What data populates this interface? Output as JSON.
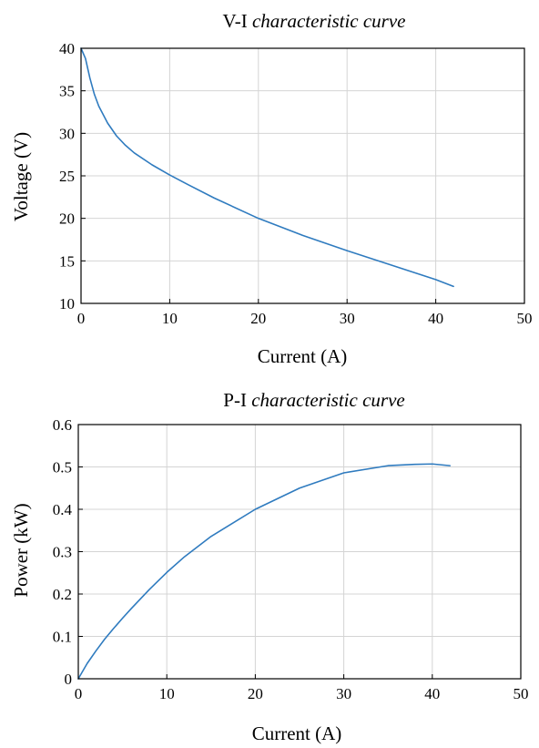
{
  "colors": {
    "series": "#2f7bbf"
  },
  "chart_data": [
    {
      "type": "line",
      "title_main": "V-I",
      "title_italic": "characteristic curve",
      "xlabel": "Current (A)",
      "ylabel": "Voltage (V)",
      "xlim": [
        0,
        50
      ],
      "ylim": [
        10,
        40
      ],
      "grid": true,
      "xticks": [
        "0",
        "10",
        "20",
        "30",
        "40",
        "50"
      ],
      "yticks": [
        "10",
        "15",
        "20",
        "25",
        "30",
        "35",
        "40"
      ],
      "series": [
        {
          "x": [
            0,
            0.5,
            1,
            1.5,
            2,
            3,
            4,
            5,
            6,
            8,
            10,
            12,
            15,
            20,
            25,
            30,
            35,
            40,
            42
          ],
          "y": [
            40,
            38.8,
            36.5,
            34.6,
            33.2,
            31.2,
            29.7,
            28.6,
            27.7,
            26.3,
            25.1,
            24.0,
            22.4,
            20.0,
            18.0,
            16.2,
            14.5,
            12.8,
            12.0
          ]
        }
      ]
    },
    {
      "type": "line",
      "title_main": "P-I",
      "title_italic": "characteristic curve",
      "xlabel": "Current (A)",
      "ylabel": "Power (kW)",
      "xlim": [
        0,
        50
      ],
      "ylim": [
        0,
        0.6
      ],
      "grid": true,
      "xticks": [
        "0",
        "10",
        "20",
        "30",
        "40",
        "50"
      ],
      "yticks": [
        "0",
        "0.1",
        "0.2",
        "0.3",
        "0.4",
        "0.5",
        "0.6"
      ],
      "series": [
        {
          "x": [
            0,
            1,
            2,
            3,
            4,
            5,
            6,
            8,
            10,
            12,
            15,
            20,
            25,
            30,
            35,
            38,
            40,
            42
          ],
          "y": [
            0,
            0.036,
            0.066,
            0.094,
            0.119,
            0.143,
            0.166,
            0.21,
            0.251,
            0.288,
            0.336,
            0.4,
            0.45,
            0.486,
            0.503,
            0.506,
            0.507,
            0.503
          ]
        }
      ]
    }
  ]
}
